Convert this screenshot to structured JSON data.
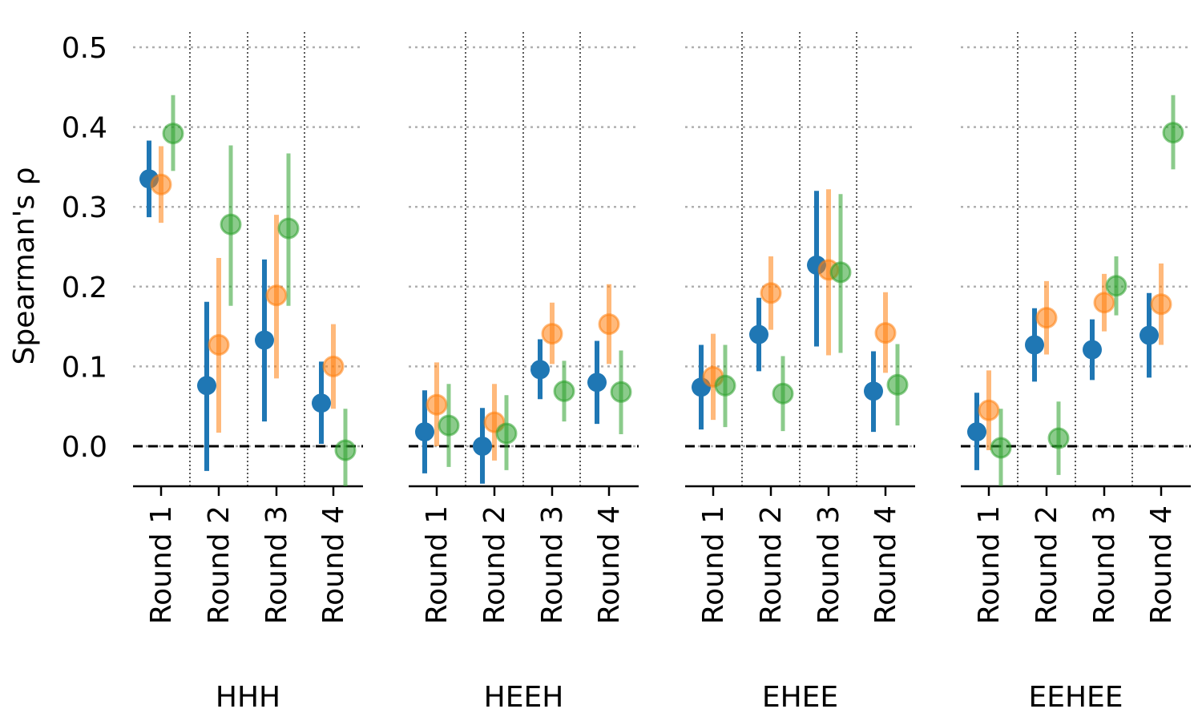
{
  "chart_data": {
    "type": "errorbar",
    "ylabel": "Spearman's ρ",
    "ylim": [
      -0.05,
      0.52
    ],
    "yticks": [
      0.0,
      0.1,
      0.2,
      0.3,
      0.4,
      0.5
    ],
    "ytick_labels": [
      "0.0",
      "0.1",
      "0.2",
      "0.3",
      "0.4",
      "0.5"
    ],
    "categories": [
      "Round 1",
      "Round 2",
      "Round 3",
      "Round 4"
    ],
    "grid": "horizontal-dotted",
    "reference_line": 0.0,
    "series_colors": [
      "#1f77b4",
      "#ff7f0e",
      "#2ca02c"
    ],
    "panels": [
      {
        "label": "HHH",
        "series": [
          {
            "values": [
              0.335,
              0.076,
              0.133,
              0.054
            ],
            "lower": [
              0.287,
              -0.031,
              0.031,
              0.003
            ],
            "upper": [
              0.383,
              0.181,
              0.234,
              0.106
            ]
          },
          {
            "values": [
              0.328,
              0.127,
              0.189,
              0.1
            ],
            "lower": [
              0.28,
              0.017,
              0.085,
              0.047
            ],
            "upper": [
              0.376,
              0.236,
              0.29,
              0.153
            ]
          },
          {
            "values": [
              0.392,
              0.278,
              0.273,
              -0.005
            ],
            "lower": [
              0.345,
              0.176,
              0.176,
              -0.055
            ],
            "upper": [
              0.44,
              0.377,
              0.367,
              0.047
            ]
          }
        ]
      },
      {
        "label": "HEEH",
        "series": [
          {
            "values": [
              0.018,
              0.0,
              0.096,
              0.08
            ],
            "lower": [
              -0.034,
              -0.047,
              0.059,
              0.028
            ],
            "upper": [
              0.07,
              0.048,
              0.134,
              0.132
            ]
          },
          {
            "values": [
              0.052,
              0.03,
              0.141,
              0.153
            ],
            "lower": [
              0.0,
              -0.018,
              0.103,
              0.103
            ],
            "upper": [
              0.105,
              0.078,
              0.18,
              0.203
            ]
          },
          {
            "values": [
              0.026,
              0.016,
              0.069,
              0.068
            ],
            "lower": [
              -0.026,
              -0.03,
              0.031,
              0.015
            ],
            "upper": [
              0.078,
              0.064,
              0.107,
              0.12
            ]
          }
        ]
      },
      {
        "label": "EHEE",
        "series": [
          {
            "values": [
              0.074,
              0.14,
              0.227,
              0.069
            ],
            "lower": [
              0.021,
              0.094,
              0.125,
              0.018
            ],
            "upper": [
              0.127,
              0.186,
              0.32,
              0.119
            ]
          },
          {
            "values": [
              0.087,
              0.192,
              0.221,
              0.142
            ],
            "lower": [
              0.033,
              0.146,
              0.114,
              0.092
            ],
            "upper": [
              0.141,
              0.238,
              0.322,
              0.193
            ]
          },
          {
            "values": [
              0.076,
              0.066,
              0.218,
              0.077
            ],
            "lower": [
              0.024,
              0.019,
              0.117,
              0.026
            ],
            "upper": [
              0.127,
              0.113,
              0.316,
              0.128
            ]
          }
        ]
      },
      {
        "label": "EEHEE",
        "series": [
          {
            "values": [
              0.018,
              0.127,
              0.121,
              0.139
            ],
            "lower": [
              -0.03,
              0.081,
              0.083,
              0.086
            ],
            "upper": [
              0.067,
              0.173,
              0.159,
              0.192
            ]
          },
          {
            "values": [
              0.045,
              0.161,
              0.18,
              0.178
            ],
            "lower": [
              -0.005,
              0.115,
              0.144,
              0.127
            ],
            "upper": [
              0.095,
              0.207,
              0.216,
              0.229
            ]
          },
          {
            "values": [
              -0.002,
              0.01,
              0.201,
              0.393
            ],
            "lower": [
              -0.05,
              -0.036,
              0.164,
              0.347
            ],
            "upper": [
              0.047,
              0.056,
              0.238,
              0.44
            ]
          }
        ]
      }
    ]
  }
}
